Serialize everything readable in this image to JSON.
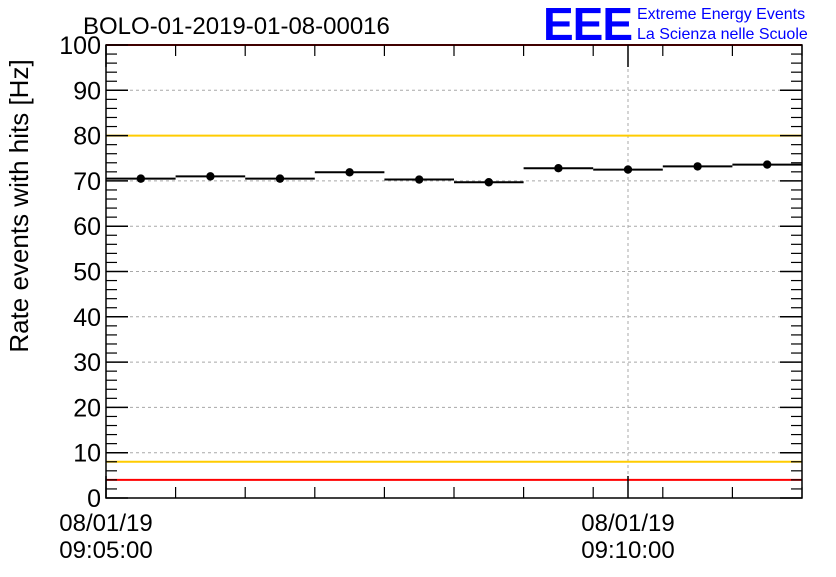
{
  "chart_data": {
    "type": "scatter",
    "title": "BOLO-01-2019-01-08-00016",
    "ylabel": "Rate events with hits [Hz]",
    "xlabel": "",
    "ylim": [
      0,
      100
    ],
    "xlim_seconds_after_first_tick": [
      0,
      400
    ],
    "y_ticks": [
      "0",
      "10",
      "20",
      "30",
      "40",
      "50",
      "60",
      "70",
      "80",
      "90",
      "100"
    ],
    "x_ticks": [
      {
        "date": "08/01/19",
        "time": "09:05:00"
      },
      {
        "date": "08/01/19",
        "time": "09:10:00"
      }
    ],
    "grid": true,
    "series": [
      {
        "x_seconds_after_first_tick": [
          20,
          60,
          100,
          140,
          180,
          220,
          260,
          300,
          340,
          380
        ],
        "x_halfwidth_seconds": 20,
        "values": [
          70.5,
          71.0,
          70.5,
          71.9,
          70.3,
          69.7,
          72.8,
          72.5,
          73.2,
          73.6
        ],
        "errors": [
          0.8,
          0.8,
          0.8,
          0.8,
          0.8,
          0.8,
          0.8,
          0.8,
          0.8,
          0.8
        ],
        "color": "#000000"
      }
    ],
    "reference_lines": [
      {
        "y": 100,
        "color": "#ff0000"
      },
      {
        "y": 80,
        "color": "#ffcc00"
      },
      {
        "y": 8,
        "color": "#ffcc00"
      },
      {
        "y": 4,
        "color": "#ff0000"
      }
    ]
  },
  "logo": {
    "text": "EEE",
    "line1": "Extreme Energy Events",
    "line2": "La Scienza nelle Scuole",
    "color": "#0000ff"
  }
}
